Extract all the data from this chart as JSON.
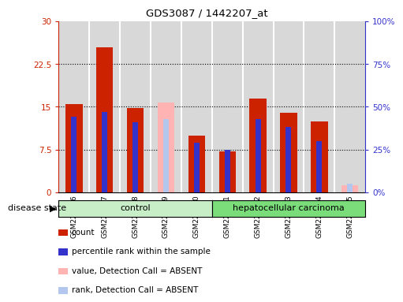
{
  "title": "GDS3087 / 1442207_at",
  "samples": [
    "GSM228786",
    "GSM228787",
    "GSM228788",
    "GSM228789",
    "GSM228790",
    "GSM228781",
    "GSM228782",
    "GSM228783",
    "GSM228784",
    "GSM228785"
  ],
  "count_values": [
    15.5,
    25.5,
    14.8,
    0,
    10.0,
    7.2,
    16.5,
    14.0,
    12.5,
    0
  ],
  "rank_values": [
    44.0,
    47.0,
    41.0,
    0,
    29.0,
    25.0,
    43.0,
    38.0,
    30.0,
    0
  ],
  "absent_count_values": [
    0,
    0,
    0,
    15.7,
    0,
    0,
    0,
    0,
    0,
    1.2
  ],
  "absent_rank_values": [
    0,
    0,
    0,
    43.0,
    0,
    0,
    0,
    0,
    0,
    5.0
  ],
  "control_samples": [
    "GSM228786",
    "GSM228787",
    "GSM228788",
    "GSM228789",
    "GSM228790"
  ],
  "disease_samples": [
    "GSM228781",
    "GSM228782",
    "GSM228783",
    "GSM228784",
    "GSM228785"
  ],
  "ylim_left": [
    0,
    30
  ],
  "ylim_right": [
    0,
    100
  ],
  "yticks_left": [
    0,
    7.5,
    15,
    22.5,
    30
  ],
  "yticks_right": [
    0,
    25,
    50,
    75,
    100
  ],
  "ytick_labels_left": [
    "0",
    "7.5",
    "15",
    "22.5",
    "30"
  ],
  "ytick_labels_right": [
    "0%",
    "25%",
    "50%",
    "75%",
    "100%"
  ],
  "color_red": "#cc2200",
  "color_blue": "#3333cc",
  "color_pink": "#ffb3b3",
  "color_lightblue": "#b3c6ee",
  "color_control_bg": "#c8eec8",
  "color_disease_bg": "#7add7a",
  "color_gray_bg": "#d8d8d8",
  "bar_width": 0.55,
  "rank_bar_width": 0.18,
  "legend_items": [
    {
      "label": "count",
      "color": "#cc2200"
    },
    {
      "label": "percentile rank within the sample",
      "color": "#3333cc"
    },
    {
      "label": "value, Detection Call = ABSENT",
      "color": "#ffb3b3"
    },
    {
      "label": "rank, Detection Call = ABSENT",
      "color": "#b3c6ee"
    }
  ]
}
